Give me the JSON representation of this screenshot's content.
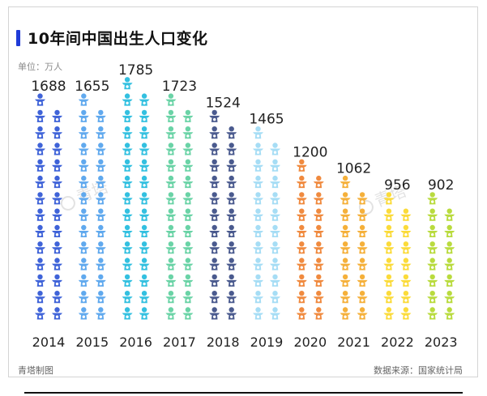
{
  "header": {
    "title": "10年间中国出生人口变化",
    "unit": "单位：万人"
  },
  "footer": {
    "left": "青塔制图",
    "right": "数据来源：国家统计局"
  },
  "watermark": {
    "text": "青塔"
  },
  "colors": {
    "title_accent": "#1f3bd8",
    "series_by_year": [
      "#3f63d8",
      "#60a9ee",
      "#33c0e0",
      "#6ad3a6",
      "#4a5a8e",
      "#a6ddf5",
      "#f08a3f",
      "#f5b03a",
      "#fbdb3a",
      "#b9db3e"
    ]
  },
  "chart_data": {
    "type": "bar",
    "subtype": "pictogram",
    "title": "10年间中国出生人口变化",
    "ylabel": "单位：万人",
    "categories": [
      "2014",
      "2015",
      "2016",
      "2017",
      "2018",
      "2019",
      "2020",
      "2021",
      "2022",
      "2023"
    ],
    "values": [
      1688,
      1655,
      1785,
      1723,
      1524,
      1465,
      1200,
      1062,
      956,
      902
    ],
    "value_labels": [
      "1688",
      "1655",
      "1785",
      "1723",
      "1524",
      "1465",
      "1200",
      "1062",
      "956",
      "902"
    ],
    "icon": "baby-icon",
    "icon_columns_per_year": 2,
    "grid": false,
    "legend": "none"
  }
}
